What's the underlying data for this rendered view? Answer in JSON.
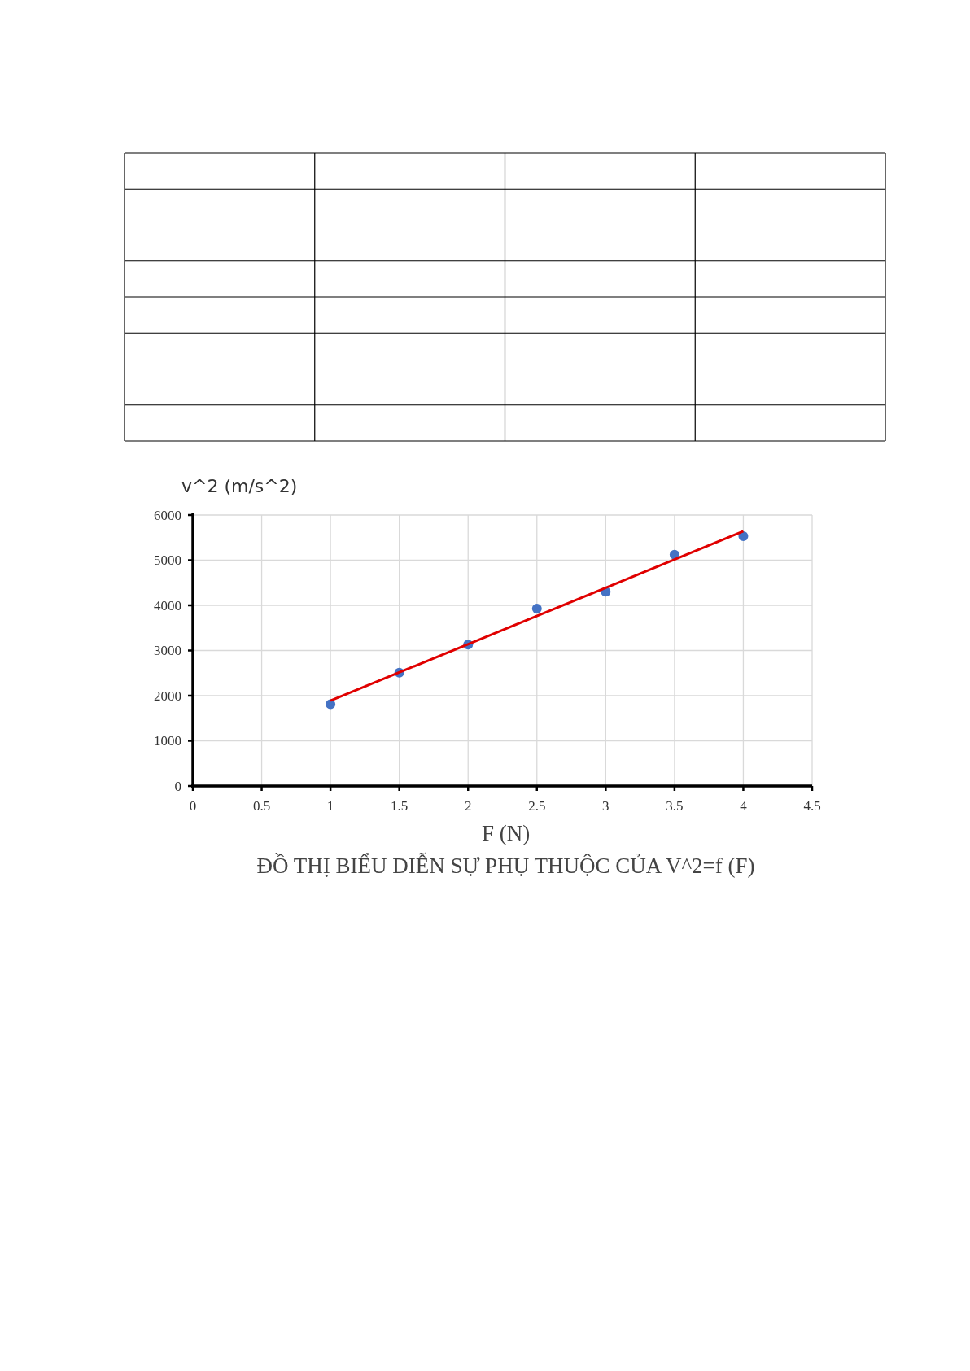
{
  "chart_data": {
    "type": "scatter",
    "title": "ĐỒ THỊ BIỂU DIỄN SỰ PHỤ THUỘC CỦA V^2=f (F)",
    "xlabel": "F (N)",
    "ylabel": "v^2  (m/s^2)",
    "series": [
      {
        "color": "#4472c4",
        "marker": "circle",
        "x": [
          1,
          1.5,
          2,
          2.5,
          3,
          3.5,
          4
        ],
        "values": [
          1810,
          2510,
          3130,
          3930,
          4300,
          5120,
          5530
        ]
      },
      {
        "type": "line",
        "color": "#e00000",
        "x": [
          1,
          4
        ],
        "values": [
          1890,
          5640
        ]
      }
    ],
    "xlim": [
      0,
      4.5
    ],
    "xticks": [
      0,
      0.5,
      1,
      1.5,
      2,
      2.5,
      3,
      3.5,
      4,
      4.5
    ],
    "ylim": [
      0,
      6000
    ],
    "yticks": [
      0,
      1000,
      2000,
      3000,
      4000,
      5000,
      6000
    ],
    "grid": true
  }
}
